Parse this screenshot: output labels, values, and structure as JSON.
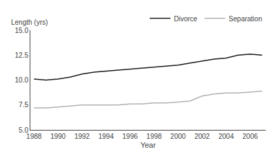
{
  "chart_data": {
    "type": "line",
    "xlabel": "Year",
    "ylabel": "Length (yrs)",
    "x": [
      1988,
      1989,
      1990,
      1991,
      1992,
      1993,
      1994,
      1995,
      1996,
      1997,
      1998,
      1999,
      2000,
      2001,
      2002,
      2003,
      2004,
      2005,
      2006,
      2007
    ],
    "series": [
      {
        "name": "Divorce",
        "color": "#1a1a1a",
        "values": [
          10.1,
          10.0,
          10.1,
          10.3,
          10.6,
          10.8,
          10.9,
          11.0,
          11.1,
          11.2,
          11.3,
          11.4,
          11.5,
          11.7,
          11.9,
          12.1,
          12.2,
          12.5,
          12.6,
          12.5
        ]
      },
      {
        "name": "Separation",
        "color": "#b0b0b0",
        "values": [
          7.2,
          7.2,
          7.3,
          7.4,
          7.5,
          7.5,
          7.5,
          7.5,
          7.6,
          7.6,
          7.7,
          7.7,
          7.8,
          7.9,
          8.4,
          8.6,
          8.7,
          8.7,
          8.8,
          8.9
        ]
      }
    ],
    "xlim": [
      1987.7,
      2007.3
    ],
    "xticks": [
      1988,
      1990,
      1992,
      1994,
      1996,
      1998,
      2000,
      2002,
      2004,
      2006
    ],
    "ylim": [
      5.0,
      15.0
    ],
    "yticks": [
      {
        "value": 5.0,
        "label": "5.0"
      },
      7.5,
      {
        "value": 10.0,
        "label": "10.0"
      },
      12.5,
      {
        "value": 15.0,
        "label": "15.0"
      }
    ],
    "grid": false,
    "legend": "upper right"
  }
}
